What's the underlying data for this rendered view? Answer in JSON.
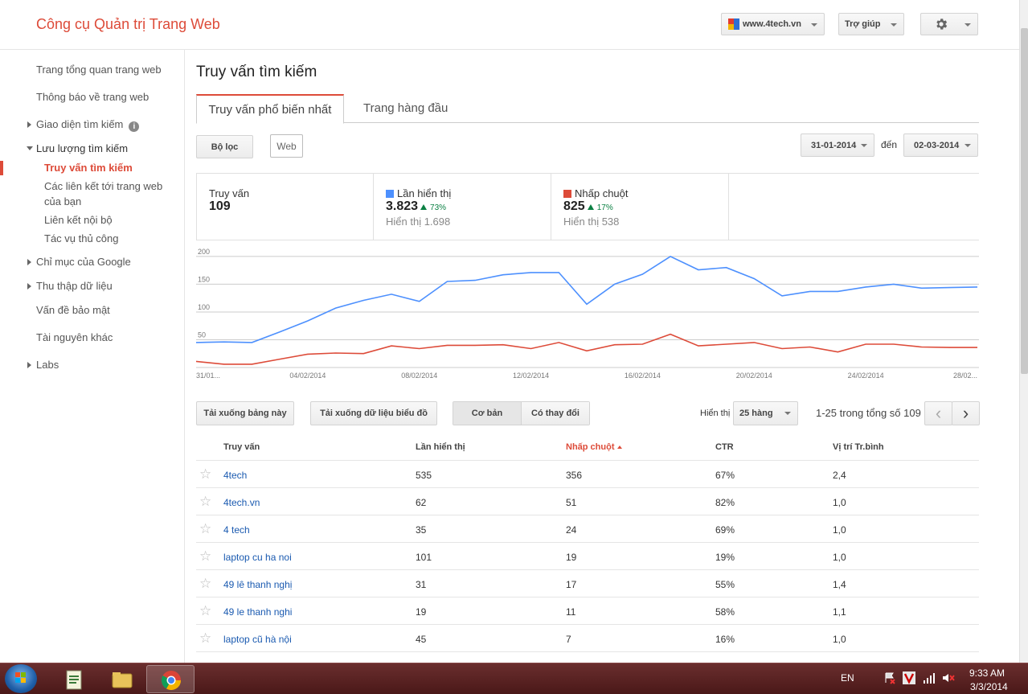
{
  "header": {
    "app_title": "Công cụ Quản trị Trang Web",
    "site": "www.4tech.vn",
    "help_label": "Trợ giúp"
  },
  "sidebar": {
    "items": [
      {
        "label": "Trang tổng quan trang web"
      },
      {
        "label": "Thông báo về trang web"
      },
      {
        "label": "Giao diện tìm kiếm"
      },
      {
        "label": "Lưu lượng tìm kiếm"
      },
      {
        "label": "Truy vấn tìm kiếm"
      },
      {
        "label": "Các liên kết tới trang web"
      },
      {
        "label": "của bạn"
      },
      {
        "label": "Liên kết nội bộ"
      },
      {
        "label": "Tác vụ thủ công"
      },
      {
        "label": "Chỉ mục của Google"
      },
      {
        "label": "Thu thập dữ liệu"
      },
      {
        "label": "Vấn đề bảo mật"
      },
      {
        "label": "Tài nguyên khác"
      },
      {
        "label": "Labs"
      }
    ],
    "info_glyph": "i"
  },
  "main": {
    "title": "Truy vấn tìm kiếm",
    "tabs": [
      {
        "label": "Truy vấn phổ biến nhất"
      },
      {
        "label": "Trang hàng đầu"
      }
    ],
    "filter_label": "Bộ lọc",
    "web_chip": "Web",
    "date_from": "31-01-2014",
    "date_to_label": "đến",
    "date_to": "02-03-2014"
  },
  "metrics": {
    "queries": {
      "label": "Truy vấn",
      "value": "109"
    },
    "impressions": {
      "label": "Lần hiển thị",
      "value": "3.823",
      "change": "73%",
      "prev": "Hiển thị 1.698",
      "color": "#4d90fe"
    },
    "clicks": {
      "label": "Nhấp chuột",
      "value": "825",
      "change": "17%",
      "prev": "Hiển thị 538",
      "color": "#dd4b39"
    }
  },
  "chart_data": {
    "type": "line",
    "ylim": [
      0,
      210
    ],
    "y_ticks": [
      50,
      100,
      150,
      200
    ],
    "y_tick_labels": [
      "50",
      "100",
      "150",
      "200"
    ],
    "x_tick_labels": [
      "31/01...",
      "04/02/2014",
      "08/02/2014",
      "12/02/2014",
      "16/02/2014",
      "20/02/2014",
      "24/02/2014",
      "28/02..."
    ],
    "x_tick_index": [
      0,
      4,
      8,
      12,
      16,
      20,
      24,
      28
    ],
    "series": [
      {
        "name": "Lần hiển thị",
        "color": "#4d90fe",
        "values": [
          45,
          46,
          45,
          64,
          84,
          107,
          121,
          132,
          119,
          155,
          157,
          167,
          171,
          171,
          114,
          150,
          168,
          200,
          176,
          180,
          160,
          129,
          137,
          137,
          145,
          150,
          143,
          144,
          145
        ]
      },
      {
        "name": "Nhấp chuột",
        "color": "#dd4b39",
        "values": [
          11,
          6,
          6,
          15,
          24,
          26,
          25,
          39,
          34,
          40,
          40,
          41,
          34,
          45,
          30,
          41,
          42,
          60,
          39,
          42,
          45,
          34,
          37,
          28,
          42,
          42,
          37,
          36,
          36
        ]
      }
    ]
  },
  "toolbar": {
    "download_table": "Tải xuống bảng này",
    "download_chart": "Tải xuống dữ liệu biểu đồ",
    "basic": "Cơ bản",
    "with_change": "Có thay đổi",
    "show_label": "Hiển thị",
    "rows": "25 hàng",
    "pager": "1-25 trong tổng số 109",
    "prev_glyph": "‹",
    "next_glyph": "›"
  },
  "table": {
    "headers": {
      "query": "Truy vấn",
      "impressions": "Lần hiển thị",
      "clicks": "Nhấp chuột",
      "ctr": "CTR",
      "position": "Vị trí Tr.bình"
    },
    "star_glyph": "☆",
    "rows": [
      {
        "query": "4tech",
        "impressions": "535",
        "clicks": "356",
        "ctr": "67%",
        "position": "2,4"
      },
      {
        "query": "4tech.vn",
        "impressions": "62",
        "clicks": "51",
        "ctr": "82%",
        "position": "1,0"
      },
      {
        "query": "4 tech",
        "impressions": "35",
        "clicks": "24",
        "ctr": "69%",
        "position": "1,0"
      },
      {
        "query": "laptop cu ha noi",
        "impressions": "101",
        "clicks": "19",
        "ctr": "19%",
        "position": "1,0"
      },
      {
        "query": "49 lê thanh nghị",
        "impressions": "31",
        "clicks": "17",
        "ctr": "55%",
        "position": "1,4"
      },
      {
        "query": "49 le thanh nghi",
        "impressions": "19",
        "clicks": "11",
        "ctr": "58%",
        "position": "1,1"
      },
      {
        "query": "laptop cũ hà nội",
        "impressions": "45",
        "clicks": "7",
        "ctr": "16%",
        "position": "1,0"
      }
    ]
  },
  "taskbar": {
    "lang": "EN",
    "time": "9:33 AM",
    "date": "3/3/2014"
  }
}
